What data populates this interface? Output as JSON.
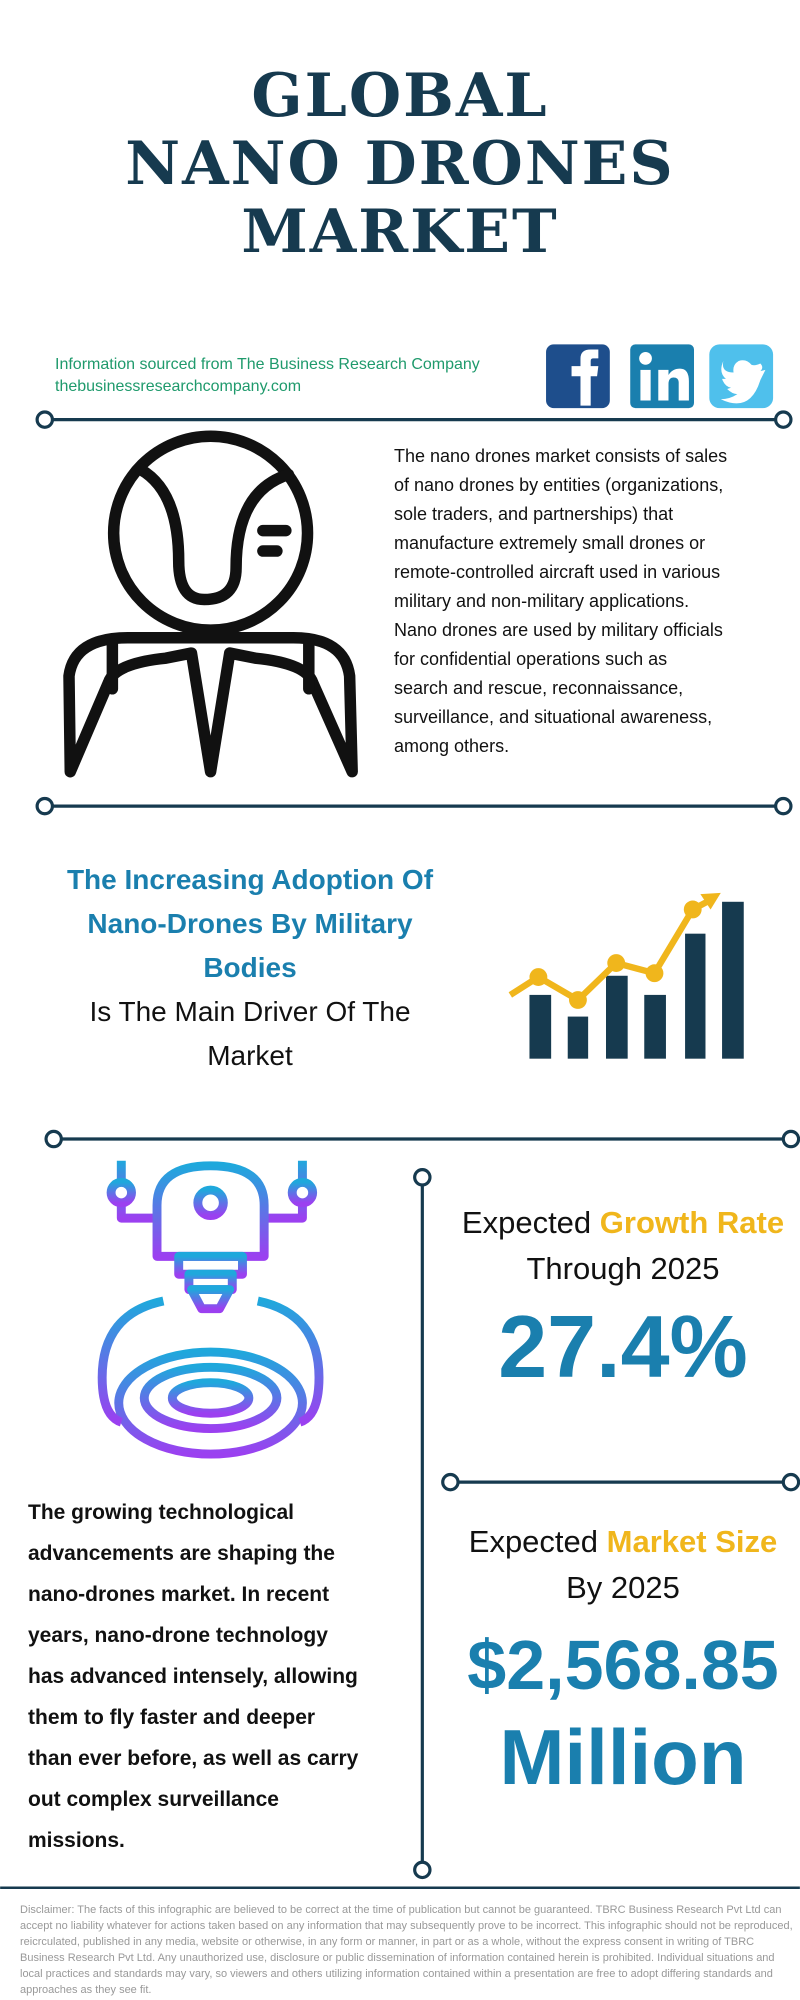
{
  "header": {
    "title_lines": [
      "GLOBAL",
      "NANO DRONES",
      "MARKET"
    ]
  },
  "source": {
    "text": "Information sourced from The Business Research Company",
    "url": "thebusinessresearchcompany.com"
  },
  "description": {
    "lines": [
      "The nano drones market consists of sales",
      "of nano drones by entities (organizations,",
      "sole traders, and partnerships) that",
      "manufacture extremely small drones or",
      "remote-controlled aircraft used in various",
      "military and non-military applications.",
      "Nano drones are used by military officials",
      "for confidential operations such as",
      "search and rescue, reconnaissance,",
      "surveillance, and situational awareness,",
      "among others."
    ]
  },
  "driver": {
    "highlight_lines": [
      "The Increasing Adoption Of",
      "Nano-Drones By Military",
      "Bodies"
    ],
    "rest_lines": [
      "Is The Main Driver Of The",
      "Market"
    ]
  },
  "trend": {
    "lines": [
      "The growing technological",
      "advancements are shaping the",
      "nano-drones market. In recent",
      "years, nano-drone technology",
      "has advanced intensely, allowing",
      "them to fly faster and deeper",
      "than ever before, as well as carry",
      "out complex surveillance",
      "missions."
    ]
  },
  "growth": {
    "prefix": "Expected",
    "highlight": "Growth Rate",
    "period": "Through 2025",
    "value": "27.4%"
  },
  "market_size": {
    "prefix": "Expected",
    "highlight": "Market Size",
    "period": "By 2025",
    "value": "$2,568.85",
    "unit": "Million"
  },
  "disclaimer": "Disclaimer: The facts of this infographic are believed to be correct at the time of publication but cannot be guaranteed. TBRC Business Research Pvt Ltd can accept no liability whatever for actions taken based on any information that may subsequently prove to be incorrect. This infographic should not be reproduced, reicrculated, published in any media, website or otherwise, in any form or manner, in part or as a whole, without the express consent in writing of TBRC Business Research Pvt Ltd. Any unauthorized use, disclosure or public dissemination of information contained herein is prohibited. Individual situations and local practices and standards may vary, so viewers and others utilizing information contained within a presentation are free to adopt differing standards and approaches as they see fit."
}
